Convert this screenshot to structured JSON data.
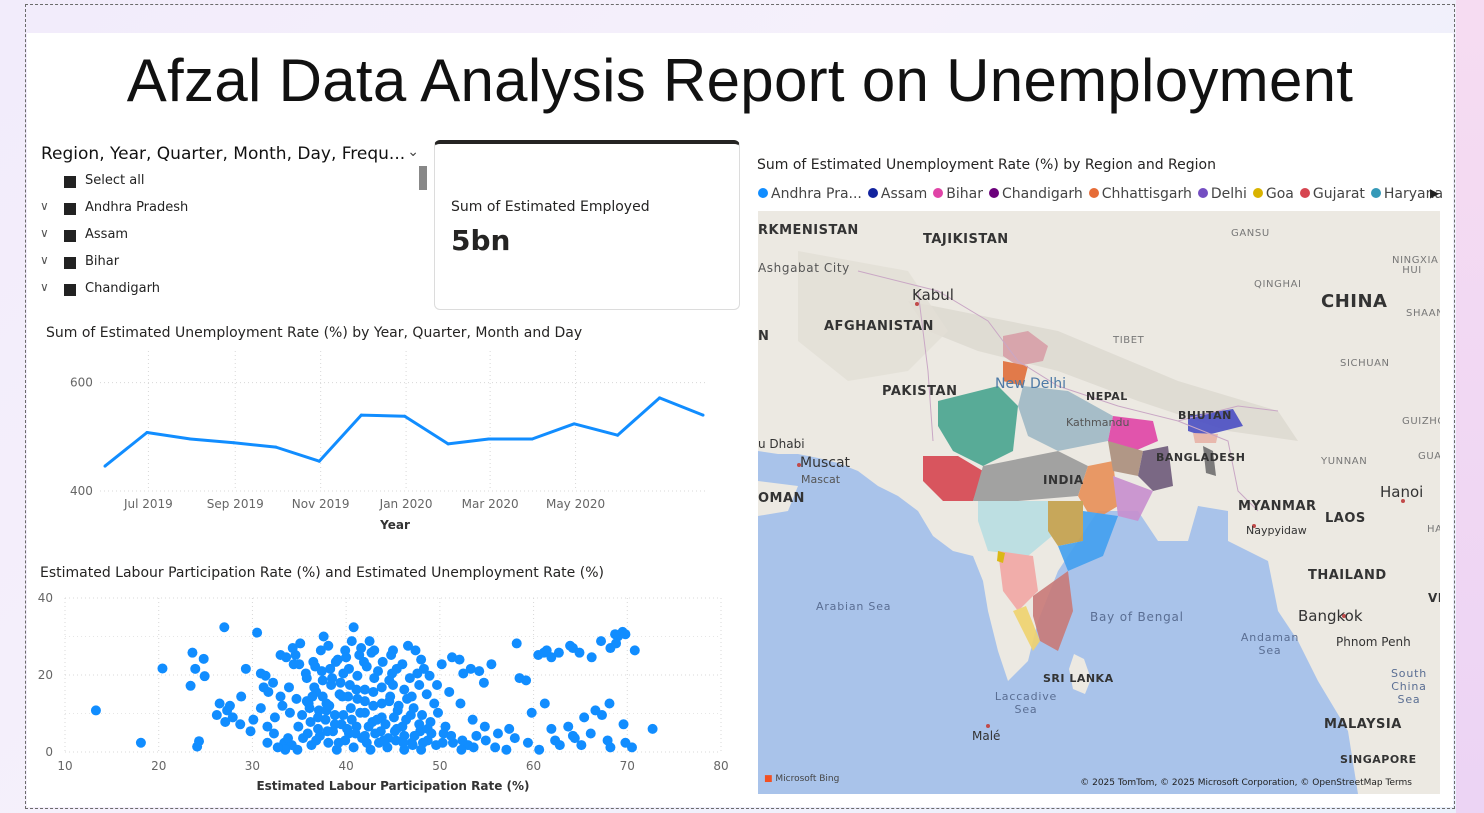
{
  "report": {
    "title": "Afzal Data Analysis Report on Unemployment"
  },
  "slicer": {
    "header": "Region, Year, Quarter, Month, Day, Frequ...",
    "items": [
      {
        "label": "Select all",
        "expandable": false
      },
      {
        "label": "Andhra Pradesh",
        "expandable": true
      },
      {
        "label": "Assam",
        "expandable": true
      },
      {
        "label": "Bihar",
        "expandable": true
      },
      {
        "label": "Chandigarh",
        "expandable": true
      }
    ]
  },
  "card": {
    "label": "Sum of Estimated Employed",
    "value": "5bn"
  },
  "line_chart": {
    "title": "Sum of Estimated Unemployment Rate (%) by Year, Quarter, Month and Day",
    "xlabel": "Year",
    "color": "#118DFF"
  },
  "scatter_chart": {
    "title": "Estimated Labour Participation Rate (%) and Estimated Unemployment Rate (%)",
    "xlabel": "Estimated Labour Participation Rate (%)",
    "color": "#118DFF"
  },
  "map": {
    "title": "Sum of Estimated Unemployment Rate (%) by Region and Region",
    "legend": [
      {
        "label": "Andhra Pra...",
        "color": "#118DFF"
      },
      {
        "label": "Assam",
        "color": "#12239E"
      },
      {
        "label": "Bihar",
        "color": "#E044A7"
      },
      {
        "label": "Chandigarh",
        "color": "#6B007B"
      },
      {
        "label": "Chhattisgarh",
        "color": "#E66C37"
      },
      {
        "label": "Delhi",
        "color": "#744EC2"
      },
      {
        "label": "Goa",
        "color": "#D9B300"
      },
      {
        "label": "Gujarat",
        "color": "#D64550"
      },
      {
        "label": "Haryana",
        "color": "#3599B8"
      }
    ],
    "labels": {
      "turkmenistan": "RKMENISTAN",
      "tajikistan": "TAJIKISTAN",
      "gansu": "GANSU",
      "ashgabat": "Ashgabat City",
      "kabul": "Kabul",
      "ningxia": "NINGXIA HUI",
      "qinghai": "QINGHAI",
      "china": "CHINA",
      "afghanistan": "AFGHANISTAN",
      "shaanxi": "SHAAN",
      "tibet": "TIBET",
      "n": "N",
      "sichuan": "SICHUAN",
      "pakistan": "PAKISTAN",
      "new_delhi": "New Delhi",
      "nepal": "NEPAL",
      "bhutan": "BHUTAN",
      "kathmandu": "Kathmandu",
      "guizhou": "GUIZHOU",
      "abu_dhabi": "u Dhabi",
      "muscat": "Muscat",
      "muscat2": "Mascat",
      "bangladesh": "BANGLADESH",
      "yunnan": "YUNNAN",
      "guan": "GUAN",
      "india": "INDIA",
      "oman": "OMAN",
      "hanoi": "Hanoi",
      "myanmar": "MYANMAR",
      "laos": "LAOS",
      "naypyidaw": "Naypyidaw",
      "ha": "HA",
      "thailand": "THAILAND",
      "viet": "VIET",
      "arabian_sea": "Arabian Sea",
      "bangkok": "Bangkok",
      "bay_of_bengal": "Bay of Bengal",
      "andaman_sea": "Andaman Sea",
      "phnom_penh": "Phnom Penh",
      "south_china_sea": "South China Sea",
      "sri_lanka": "SRI LANKA",
      "laccadive": "Laccadive Sea",
      "malaysia": "MALAYSIA",
      "male": "Malé",
      "singapore": "SINGAPORE"
    },
    "bing": "Microsoft Bing",
    "attribution": "© 2025 TomTom, © 2025 Microsoft Corporation, © OpenStreetMap  Terms"
  },
  "chart_data": [
    {
      "type": "line",
      "title": "Sum of Estimated Unemployment Rate (%) by Year, Quarter, Month and Day",
      "xlabel": "Year",
      "ylabel": "",
      "x": [
        "2019-05-31",
        "2019-06-30",
        "2019-07-31",
        "2019-08-31",
        "2019-09-30",
        "2019-10-31",
        "2019-11-30",
        "2019-12-31",
        "2020-01-31",
        "2020-02-29",
        "2020-03-31",
        "2020-04-30",
        "2020-05-31",
        "2020-06-30",
        "2020-07-31"
      ],
      "series": [
        {
          "values": [
            446,
            508,
            496,
            489,
            481,
            455,
            540,
            538,
            487,
            496,
            496,
            524,
            503,
            572,
            540
          ]
        }
      ],
      "x_tick_labels": [
        "Jul 2019",
        "Sep 2019",
        "Nov 2019",
        "Jan 2020",
        "Mar 2020",
        "May 2020"
      ],
      "y_tick_labels": [
        "400",
        "600"
      ],
      "ylim": [
        400,
        640
      ],
      "grid": true
    },
    {
      "type": "scatter",
      "title": "Estimated Labour Participation Rate (%) and Estimated Unemployment Rate (%)",
      "xlabel": "Estimated Labour Participation Rate (%)",
      "ylabel": "",
      "xlim": [
        10,
        80
      ],
      "ylim": [
        0,
        40
      ],
      "x_tick_labels": [
        "10",
        "20",
        "30",
        "40",
        "50",
        "60",
        "70",
        "80"
      ],
      "y_tick_labels": [
        "0",
        "20",
        "40"
      ],
      "grid": true,
      "points": [
        [
          13.3,
          10.8
        ],
        [
          18.1,
          2.4
        ],
        [
          20.4,
          21.7
        ],
        [
          23.6,
          25.8
        ],
        [
          23.9,
          21.6
        ],
        [
          24.8,
          24.2
        ],
        [
          24.9,
          19.7
        ],
        [
          23.4,
          17.2
        ],
        [
          24.1,
          1.4
        ],
        [
          24.3,
          2.8
        ],
        [
          27.0,
          32.4
        ],
        [
          26.2,
          9.6
        ],
        [
          27.3,
          10.8
        ],
        [
          27.6,
          12.0
        ],
        [
          28.8,
          14.4
        ],
        [
          29.3,
          21.6
        ],
        [
          30.5,
          31.0
        ],
        [
          30.9,
          20.4
        ],
        [
          31.2,
          16.8
        ],
        [
          31.7,
          15.6
        ],
        [
          33.0,
          25.2
        ],
        [
          33.6,
          24.6
        ],
        [
          34.4,
          22.8
        ],
        [
          35.0,
          22.8
        ],
        [
          32.3,
          4.8
        ],
        [
          31.6,
          2.4
        ],
        [
          33.4,
          2.4
        ],
        [
          43.0,
          26.4
        ],
        [
          45.0,
          26.4
        ],
        [
          48.0,
          24.0
        ],
        [
          50.2,
          22.8
        ],
        [
          51.3,
          24.6
        ],
        [
          52.1,
          24.0
        ],
        [
          52.5,
          20.4
        ],
        [
          53.3,
          21.6
        ],
        [
          54.2,
          21.0
        ],
        [
          54.7,
          18.0
        ],
        [
          55.5,
          22.8
        ],
        [
          58.2,
          28.2
        ],
        [
          60.5,
          25.2
        ],
        [
          61.1,
          25.8
        ],
        [
          61.4,
          26.4
        ],
        [
          61.9,
          24.6
        ],
        [
          62.7,
          25.8
        ],
        [
          63.9,
          27.6
        ],
        [
          64.2,
          27.0
        ],
        [
          64.9,
          25.8
        ],
        [
          66.2,
          24.6
        ],
        [
          67.2,
          28.8
        ],
        [
          68.2,
          27.0
        ],
        [
          68.7,
          30.6
        ],
        [
          69.0,
          30.0
        ],
        [
          69.5,
          31.2
        ],
        [
          69.8,
          30.6
        ],
        [
          70.8,
          26.4
        ],
        [
          68.8,
          28.2
        ],
        [
          58.5,
          19.2
        ],
        [
          59.2,
          18.6
        ],
        [
          59.8,
          10.2
        ],
        [
          61.2,
          12.6
        ],
        [
          61.9,
          6.0
        ],
        [
          62.3,
          3.0
        ],
        [
          63.7,
          6.6
        ],
        [
          64.2,
          4.2
        ],
        [
          65.4,
          9.0
        ],
        [
          66.6,
          10.8
        ],
        [
          67.3,
          9.6
        ],
        [
          68.1,
          12.6
        ],
        [
          69.6,
          7.2
        ],
        [
          70.5,
          1.2
        ],
        [
          72.7,
          6.0
        ],
        [
          69.8,
          2.4
        ],
        [
          68.2,
          1.2
        ],
        [
          67.9,
          3.0
        ],
        [
          66.1,
          4.8
        ],
        [
          65.1,
          1.8
        ],
        [
          64.4,
          3.6
        ],
        [
          62.8,
          1.8
        ],
        [
          60.6,
          0.6
        ],
        [
          59.4,
          2.4
        ],
        [
          58.0,
          3.6
        ],
        [
          57.1,
          0.6
        ],
        [
          55.9,
          1.2
        ],
        [
          54.9,
          3.0
        ],
        [
          53.9,
          4.2
        ],
        [
          53.0,
          1.8
        ],
        [
          52.3,
          0.6
        ],
        [
          51.4,
          2.4
        ],
        [
          35.8,
          13.2
        ],
        [
          37.1,
          10.8
        ],
        [
          37.9,
          12.6
        ],
        [
          38.8,
          9.6
        ],
        [
          39.6,
          14.4
        ],
        [
          40.5,
          11.4
        ],
        [
          41.2,
          13.8
        ],
        [
          42.0,
          10.2
        ],
        [
          42.9,
          12.0
        ],
        [
          43.8,
          9.0
        ],
        [
          44.6,
          13.2
        ],
        [
          45.5,
          10.8
        ],
        [
          46.4,
          8.4
        ],
        [
          47.2,
          11.4
        ],
        [
          48.1,
          9.6
        ],
        [
          49.0,
          7.8
        ],
        [
          49.8,
          10.2
        ],
        [
          50.6,
          6.6
        ],
        [
          36.2,
          7.8
        ],
        [
          37.0,
          6.0
        ],
        [
          37.8,
          8.4
        ],
        [
          38.6,
          5.4
        ],
        [
          39.5,
          7.2
        ],
        [
          40.3,
          4.8
        ],
        [
          41.1,
          6.6
        ],
        [
          42.0,
          4.2
        ],
        [
          42.8,
          7.8
        ],
        [
          43.7,
          5.4
        ],
        [
          44.5,
          3.6
        ],
        [
          45.4,
          6.0
        ],
        [
          46.2,
          4.2
        ],
        [
          47.0,
          2.4
        ],
        [
          47.9,
          5.4
        ],
        [
          48.7,
          3.0
        ],
        [
          49.6,
          1.8
        ],
        [
          50.4,
          4.8
        ],
        [
          35.4,
          3.6
        ],
        [
          36.3,
          1.8
        ],
        [
          37.2,
          4.2
        ],
        [
          38.1,
          2.4
        ],
        [
          39.0,
          0.6
        ],
        [
          39.9,
          3.0
        ],
        [
          40.8,
          1.2
        ],
        [
          41.7,
          3.6
        ],
        [
          42.6,
          0.6
        ],
        [
          43.5,
          2.4
        ],
        [
          44.4,
          1.2
        ],
        [
          45.3,
          3.0
        ],
        [
          46.2,
          0.6
        ],
        [
          47.1,
          1.8
        ],
        [
          48.0,
          0.6
        ],
        [
          34.8,
          0.6
        ],
        [
          34.2,
          1.8
        ],
        [
          33.5,
          0.6
        ],
        [
          34.9,
          6.6
        ],
        [
          35.3,
          9.6
        ],
        [
          36.0,
          12.6
        ],
        [
          36.8,
          15.6
        ],
        [
          37.5,
          18.6
        ],
        [
          38.3,
          21.6
        ],
        [
          39.1,
          24.0
        ],
        [
          39.9,
          26.4
        ],
        [
          40.6,
          28.8
        ],
        [
          41.4,
          25.2
        ],
        [
          42.2,
          22.2
        ],
        [
          43.0,
          19.2
        ],
        [
          43.8,
          16.8
        ],
        [
          44.6,
          18.6
        ],
        [
          45.4,
          21.6
        ],
        [
          46.2,
          16.2
        ],
        [
          47.0,
          14.4
        ],
        [
          47.8,
          17.4
        ],
        [
          48.6,
          15.0
        ],
        [
          49.4,
          12.6
        ],
        [
          35.7,
          20.4
        ],
        [
          36.5,
          23.4
        ],
        [
          37.3,
          26.4
        ],
        [
          38.1,
          27.6
        ],
        [
          38.9,
          23.4
        ],
        [
          39.7,
          20.4
        ],
        [
          40.4,
          17.4
        ],
        [
          41.2,
          19.8
        ],
        [
          42.0,
          16.2
        ],
        [
          36.6,
          16.8
        ],
        [
          37.5,
          14.4
        ],
        [
          38.4,
          17.4
        ],
        [
          39.3,
          15.0
        ],
        [
          40.2,
          14.4
        ],
        [
          41.1,
          16.2
        ],
        [
          42.0,
          13.2
        ],
        [
          42.9,
          15.6
        ],
        [
          43.8,
          12.6
        ],
        [
          44.7,
          14.4
        ],
        [
          45.6,
          12.0
        ],
        [
          46.5,
          13.8
        ],
        [
          36.1,
          11.4
        ],
        [
          37.0,
          9.0
        ],
        [
          37.9,
          10.8
        ],
        [
          38.8,
          7.2
        ],
        [
          39.7,
          9.6
        ],
        [
          40.6,
          8.4
        ],
        [
          41.5,
          10.2
        ],
        [
          42.4,
          6.6
        ],
        [
          43.3,
          8.4
        ],
        [
          44.2,
          7.2
        ],
        [
          45.1,
          9.0
        ],
        [
          46.0,
          6.6
        ],
        [
          46.9,
          9.6
        ],
        [
          47.8,
          7.2
        ],
        [
          48.7,
          6.0
        ],
        [
          30.1,
          8.4
        ],
        [
          30.9,
          11.4
        ],
        [
          31.6,
          6.6
        ],
        [
          32.4,
          9.0
        ],
        [
          33.2,
          12.0
        ],
        [
          34.0,
          10.2
        ],
        [
          34.7,
          13.8
        ],
        [
          33.9,
          16.8
        ],
        [
          33.0,
          14.4
        ],
        [
          32.2,
          18.0
        ],
        [
          31.4,
          19.8
        ],
        [
          29.8,
          5.4
        ],
        [
          28.7,
          7.2
        ],
        [
          27.9,
          9.0
        ],
        [
          27.1,
          7.8
        ],
        [
          26.5,
          12.6
        ],
        [
          32.7,
          1.2
        ],
        [
          33.8,
          3.6
        ],
        [
          35.9,
          4.8
        ],
        [
          36.8,
          3.0
        ],
        [
          38.0,
          5.4
        ],
        [
          39.2,
          2.4
        ],
        [
          40.1,
          6.0
        ],
        [
          41.0,
          4.8
        ],
        [
          42.2,
          2.4
        ],
        [
          43.1,
          4.8
        ],
        [
          44.0,
          3.0
        ],
        [
          45.2,
          5.4
        ],
        [
          46.1,
          2.4
        ],
        [
          47.3,
          4.2
        ],
        [
          48.2,
          2.4
        ],
        [
          49.1,
          4.8
        ],
        [
          50.3,
          2.4
        ],
        [
          51.2,
          4.2
        ],
        [
          52.4,
          3.0
        ],
        [
          53.6,
          1.2
        ],
        [
          44.8,
          25.2
        ],
        [
          46.6,
          27.6
        ],
        [
          47.4,
          26.4
        ],
        [
          34.6,
          25.2
        ],
        [
          37.6,
          30.0
        ],
        [
          40.8,
          32.4
        ],
        [
          42.5,
          28.8
        ],
        [
          36.7,
          22.2
        ],
        [
          38.5,
          19.2
        ],
        [
          40.3,
          21.6
        ],
        [
          41.9,
          23.4
        ],
        [
          43.4,
          21.0
        ],
        [
          44.9,
          20.4
        ],
        [
          46.8,
          19.2
        ],
        [
          48.3,
          21.6
        ],
        [
          49.7,
          17.4
        ],
        [
          51.0,
          15.6
        ],
        [
          52.2,
          12.6
        ],
        [
          53.5,
          8.4
        ],
        [
          54.8,
          6.6
        ],
        [
          56.2,
          4.8
        ],
        [
          57.4,
          6.0
        ],
        [
          34.3,
          27.0
        ],
        [
          35.1,
          28.2
        ],
        [
          35.8,
          19.2
        ],
        [
          36.4,
          14.4
        ],
        [
          37.4,
          21.0
        ],
        [
          38.2,
          12.0
        ],
        [
          39.4,
          18.0
        ],
        [
          40.0,
          24.6
        ],
        [
          41.6,
          27.0
        ],
        [
          42.7,
          25.8
        ],
        [
          43.9,
          23.4
        ],
        [
          45.0,
          17.4
        ],
        [
          46.0,
          22.8
        ],
        [
          47.6,
          20.4
        ],
        [
          48.9,
          19.8
        ]
      ]
    },
    {
      "type": "map",
      "title": "Sum of Estimated Unemployment Rate (%) by Region and Region",
      "legend": [
        "Andhra Pra...",
        "Assam",
        "Bihar",
        "Chandigarh",
        "Chhattisgarh",
        "Delhi",
        "Goa",
        "Gujarat",
        "Haryana"
      ]
    }
  ]
}
